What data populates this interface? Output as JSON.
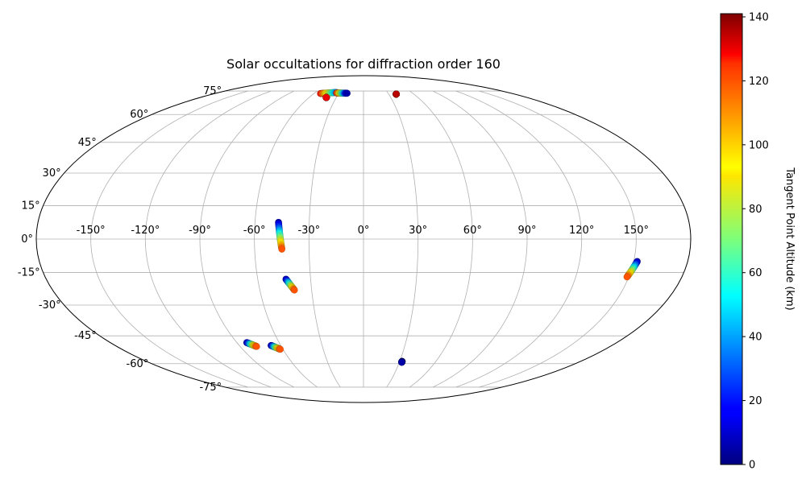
{
  "chart_data": {
    "type": "scatter",
    "projection": "mollweide",
    "title": "Solar occultations for diffraction order 160",
    "grid": true,
    "longitude_ticks": [
      "-150°",
      "-120°",
      "-90°",
      "-60°",
      "-30°",
      "0°",
      "30°",
      "60°",
      "90°",
      "120°",
      "150°"
    ],
    "latitude_ticks": [
      "75°",
      "60°",
      "45°",
      "30°",
      "15°",
      "0°",
      "-15°",
      "-30°",
      "-45°",
      "-60°",
      "-75°"
    ],
    "colorbar": {
      "label": "Tangent Point Altitude (km)",
      "min": 0,
      "max": 141,
      "ticks": [
        "0",
        "20",
        "40",
        "60",
        "80",
        "100",
        "120",
        "140"
      ],
      "colormap": "jet"
    },
    "series": [
      {
        "lon_start": -52,
        "lat_start": 73.2,
        "lon_end": -34,
        "lat_end": 74.0,
        "alt_start": 130,
        "alt_end": 40
      },
      {
        "lon_start": -33,
        "lat_start": 73.6,
        "lon_end": -20,
        "lat_end": 73.4,
        "alt_start": 130,
        "alt_end": 5
      },
      {
        "lon_start": -41,
        "lat_start": 70.5,
        "lon_end": -41,
        "lat_end": 70.5,
        "alt_start": 130,
        "alt_end": 130
      },
      {
        "lon_start": 39,
        "lat_start": 72.8,
        "lon_end": 39,
        "lat_end": 72.8,
        "alt_start": 135,
        "alt_end": 135
      },
      {
        "lon_start": -47,
        "lat_start": 7.5,
        "lon_end": -45,
        "lat_end": -4.5,
        "alt_start": 5,
        "alt_end": 120
      },
      {
        "lon_start": -44,
        "lat_start": -18,
        "lon_end": -40,
        "lat_end": -23,
        "alt_start": 5,
        "alt_end": 120
      },
      {
        "lon_start": -83,
        "lat_start": -48.5,
        "lon_end": -78,
        "lat_end": -50.5,
        "alt_start": 5,
        "alt_end": 120
      },
      {
        "lon_start": -67,
        "lat_start": -50,
        "lon_end": -62,
        "lat_end": -52,
        "alt_start": 5,
        "alt_end": 120
      },
      {
        "lon_start": 32,
        "lat_start": -58.7,
        "lon_end": 32,
        "lat_end": -59.2,
        "alt_start": 5,
        "alt_end": 5
      },
      {
        "lon_start": 152,
        "lat_start": -10,
        "lon_end": 149,
        "lat_end": -17,
        "alt_start": 5,
        "alt_end": 120
      }
    ]
  }
}
